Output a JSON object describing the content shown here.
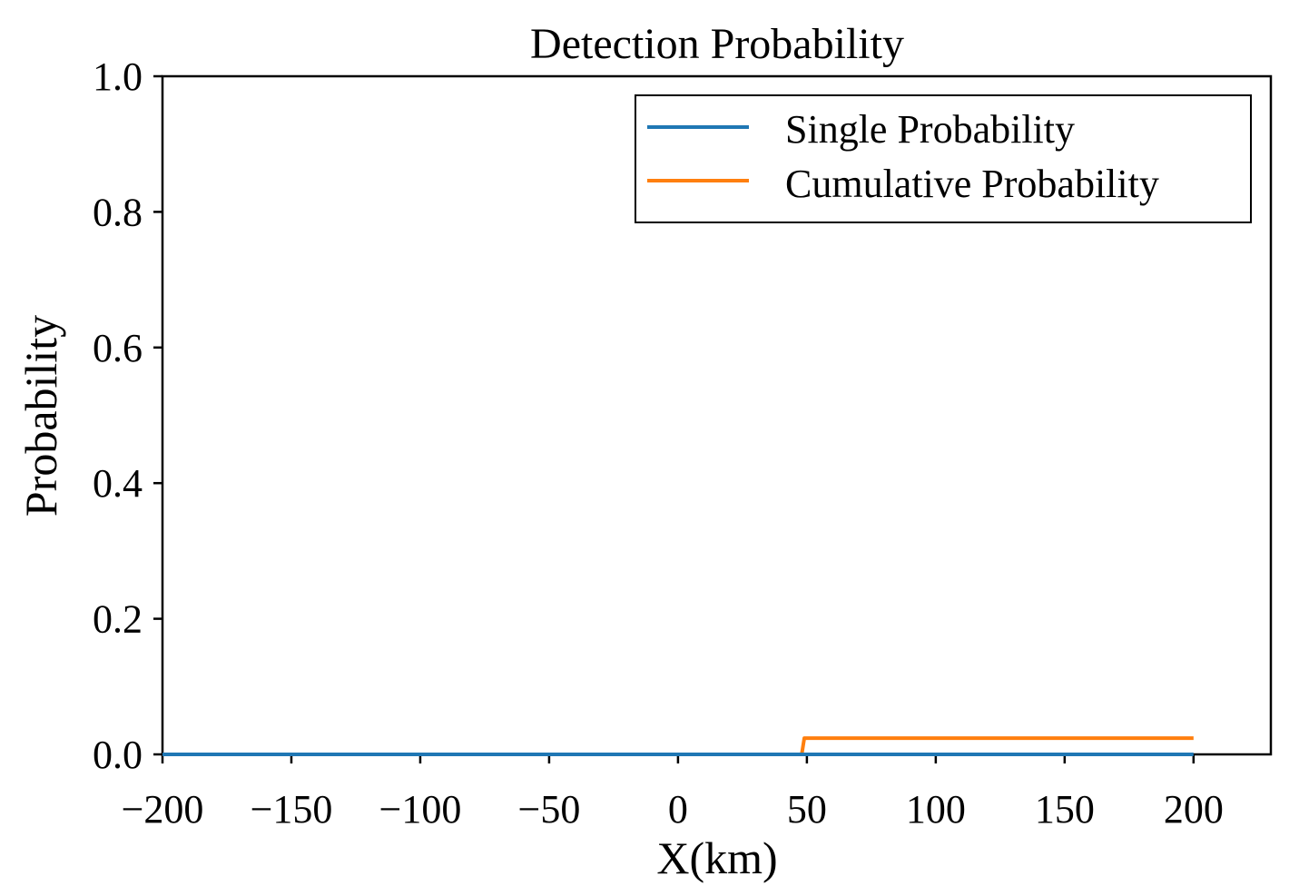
{
  "chart_data": {
    "type": "line",
    "title": "Detection Probability",
    "xlabel": "X(km)",
    "ylabel": "Probability",
    "xlim": [
      -200,
      230
    ],
    "ylim": [
      0.0,
      1.0
    ],
    "xticks": [
      -200,
      -150,
      -100,
      -50,
      0,
      50,
      100,
      150,
      200
    ],
    "xtick_labels": [
      "−200",
      "−150",
      "−100",
      "−50",
      "0",
      "50",
      "100",
      "150",
      "200"
    ],
    "yticks": [
      0.0,
      0.2,
      0.4,
      0.6,
      0.8,
      1.0
    ],
    "ytick_labels": [
      "0.0",
      "0.2",
      "0.4",
      "0.6",
      "0.8",
      "1.0"
    ],
    "grid": false,
    "legend_position": "top-right",
    "series": [
      {
        "name": "Single Probability",
        "color": "#1f77b4",
        "x": [
          -200,
          48,
          50,
          200
        ],
        "y": [
          0.0,
          0.0,
          0.0,
          0.0
        ]
      },
      {
        "name": "Cumulative Probability",
        "color": "#ff7f0e",
        "x": [
          -200,
          48,
          49,
          200
        ],
        "y": [
          0.0,
          0.0,
          0.024,
          0.024
        ]
      }
    ]
  }
}
